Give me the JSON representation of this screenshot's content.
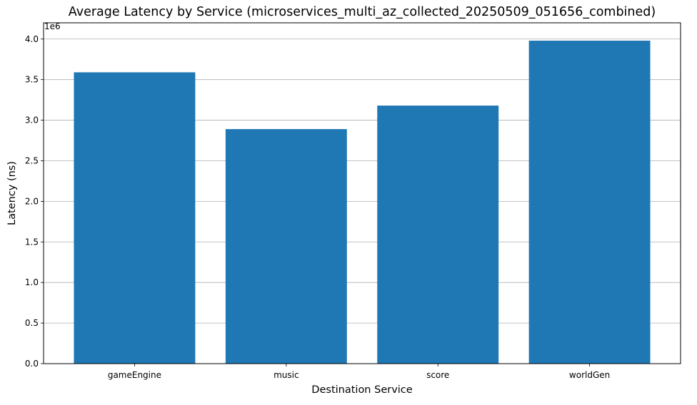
{
  "chart_data": {
    "type": "bar",
    "title": "Average Latency by Service (microservices_multi_az_collected_20250509_051656_combined)",
    "xlabel": "Destination Service",
    "ylabel": "Latency (ns)",
    "y_offset_label": "1e6",
    "categories": [
      "gameEngine",
      "music",
      "score",
      "worldGen"
    ],
    "values": [
      3590000,
      2890000,
      3180000,
      3980000
    ],
    "ylim": [
      0,
      4200000
    ],
    "yticks": [
      0,
      500000,
      1000000,
      1500000,
      2000000,
      2500000,
      3000000,
      3500000,
      4000000
    ],
    "ytick_labels": [
      "0.0",
      "0.5",
      "1.0",
      "1.5",
      "2.0",
      "2.5",
      "3.0",
      "3.5",
      "4.0"
    ],
    "bar_color": "#1f77b4",
    "grid": "y-axis only",
    "legend": "none"
  }
}
